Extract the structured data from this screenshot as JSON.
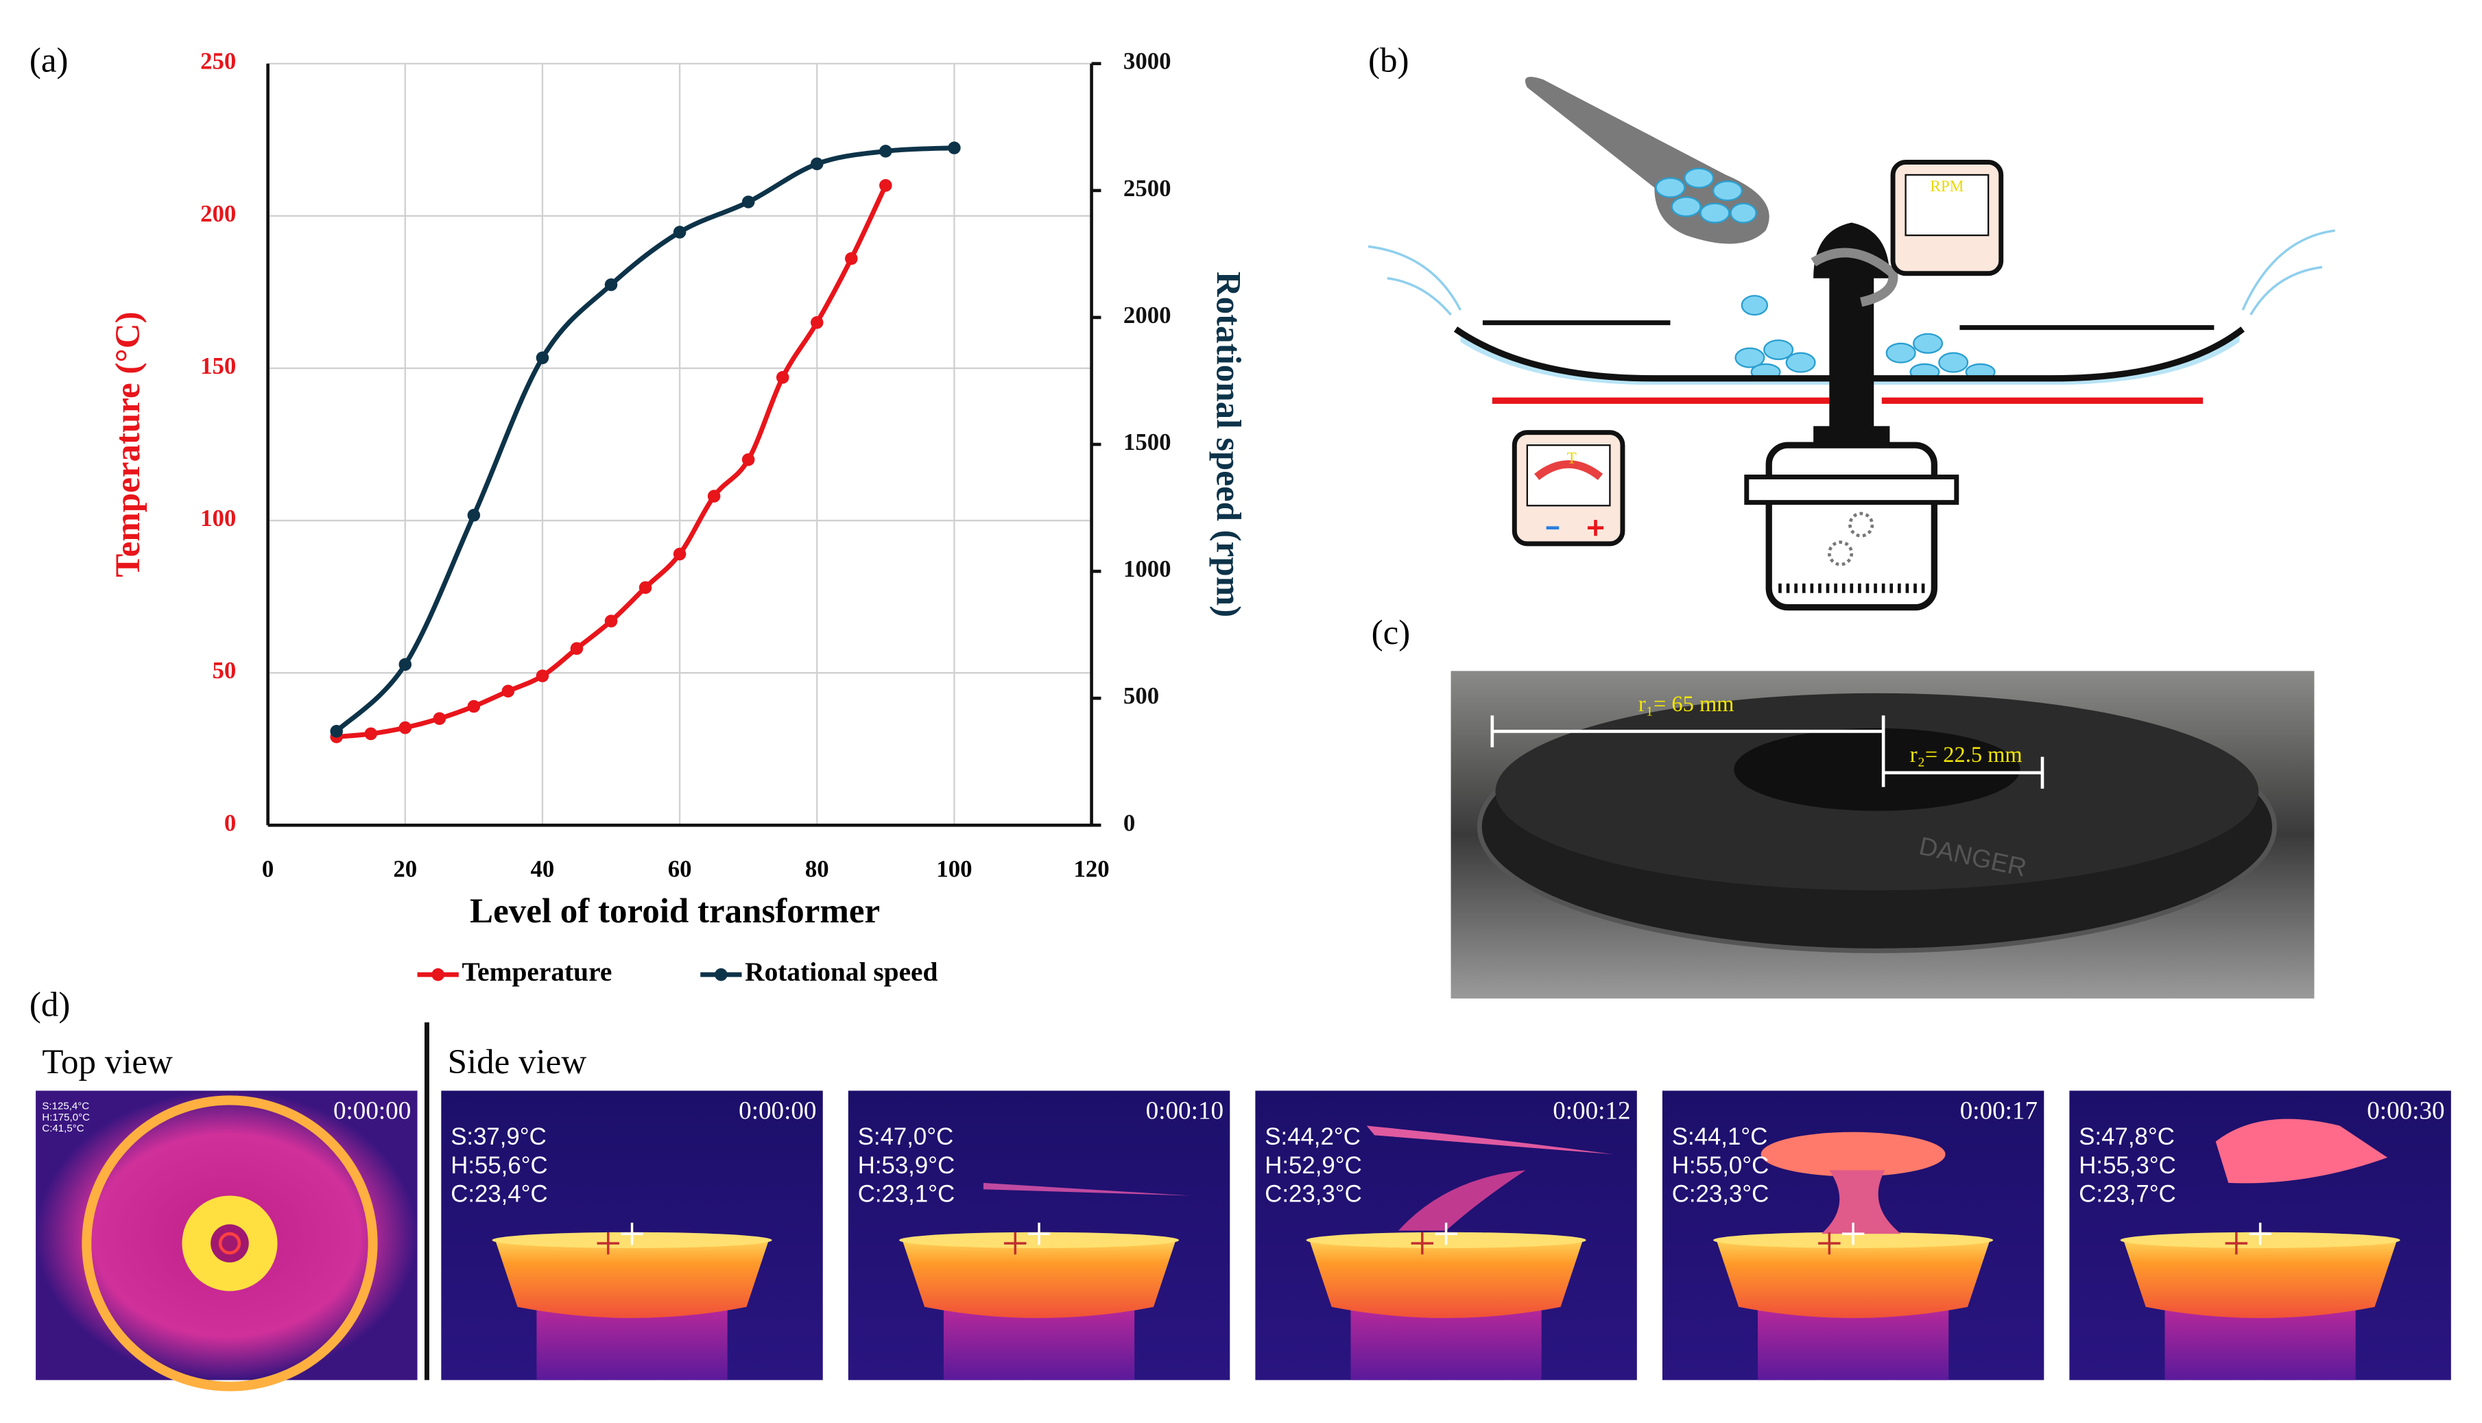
{
  "panel_labels": [
    "(a)",
    "(b)",
    "(c)",
    "(d)"
  ],
  "chart_data": {
    "type": "line",
    "xlabel": "Level of toroid transformer",
    "ylabel": "Temperature (°C)",
    "y2label": "Rotational speed (rpm)",
    "xlim": [
      0,
      120
    ],
    "xticks": [
      0,
      20,
      40,
      60,
      80,
      100,
      120
    ],
    "ylim": [
      0,
      250
    ],
    "yticks": [
      0,
      50,
      100,
      150,
      200,
      250
    ],
    "y2lim": [
      0,
      3000
    ],
    "y2ticks": [
      0,
      500,
      1000,
      1500,
      2000,
      2500,
      3000
    ],
    "grid": true,
    "legend": "bottom",
    "series": [
      {
        "name": "Temperature",
        "color": "#e8151b",
        "axis": "y",
        "x": [
          10,
          15,
          20,
          25,
          30,
          35,
          40,
          45,
          50,
          55,
          60,
          65,
          70,
          75,
          80,
          85,
          90
        ],
        "values": [
          29,
          30,
          32,
          35,
          39,
          44,
          49,
          58,
          67,
          78,
          89,
          108,
          120,
          147,
          165,
          186,
          210
        ]
      },
      {
        "name": "Rotational speed",
        "color": "#0d3349",
        "axis": "y2",
        "x": [
          10,
          20,
          30,
          40,
          50,
          60,
          70,
          80,
          90,
          100
        ],
        "values": [
          370,
          633,
          1221,
          1841,
          2129,
          2336,
          2455,
          2605,
          2655,
          2668
        ]
      }
    ]
  },
  "diagram": {
    "rpm_gauge": "RPM",
    "temp_gauge": "T"
  },
  "photo": {
    "r1": "r₁= 65 mm",
    "r2": "r₂= 22.5 mm",
    "brand": "DANGER"
  },
  "thermal": {
    "top_title": "Top view",
    "side_title": "Side view",
    "top": {
      "time": "0:00:00",
      "readings": [
        "S:125,4°C",
        "H:175,0°C",
        "C:41,5°C"
      ]
    },
    "side": [
      {
        "time": "0:00:00",
        "readings": [
          "S:37,9°C",
          "H:55,6°C",
          "C:23,4°C"
        ]
      },
      {
        "time": "0:00:10",
        "readings": [
          "S:47,0°C",
          "H:53,9°C",
          "C:23,1°C"
        ]
      },
      {
        "time": "0:00:12",
        "readings": [
          "S:44,2°C",
          "H:52,9°C",
          "C:23,3°C"
        ]
      },
      {
        "time": "0:00:17",
        "readings": [
          "S:44,1°C",
          "H:55,0°C",
          "C:23,3°C"
        ]
      },
      {
        "time": "0:00:30",
        "readings": [
          "S:47,8°C",
          "H:55,3°C",
          "C:23,7°C"
        ]
      }
    ]
  }
}
